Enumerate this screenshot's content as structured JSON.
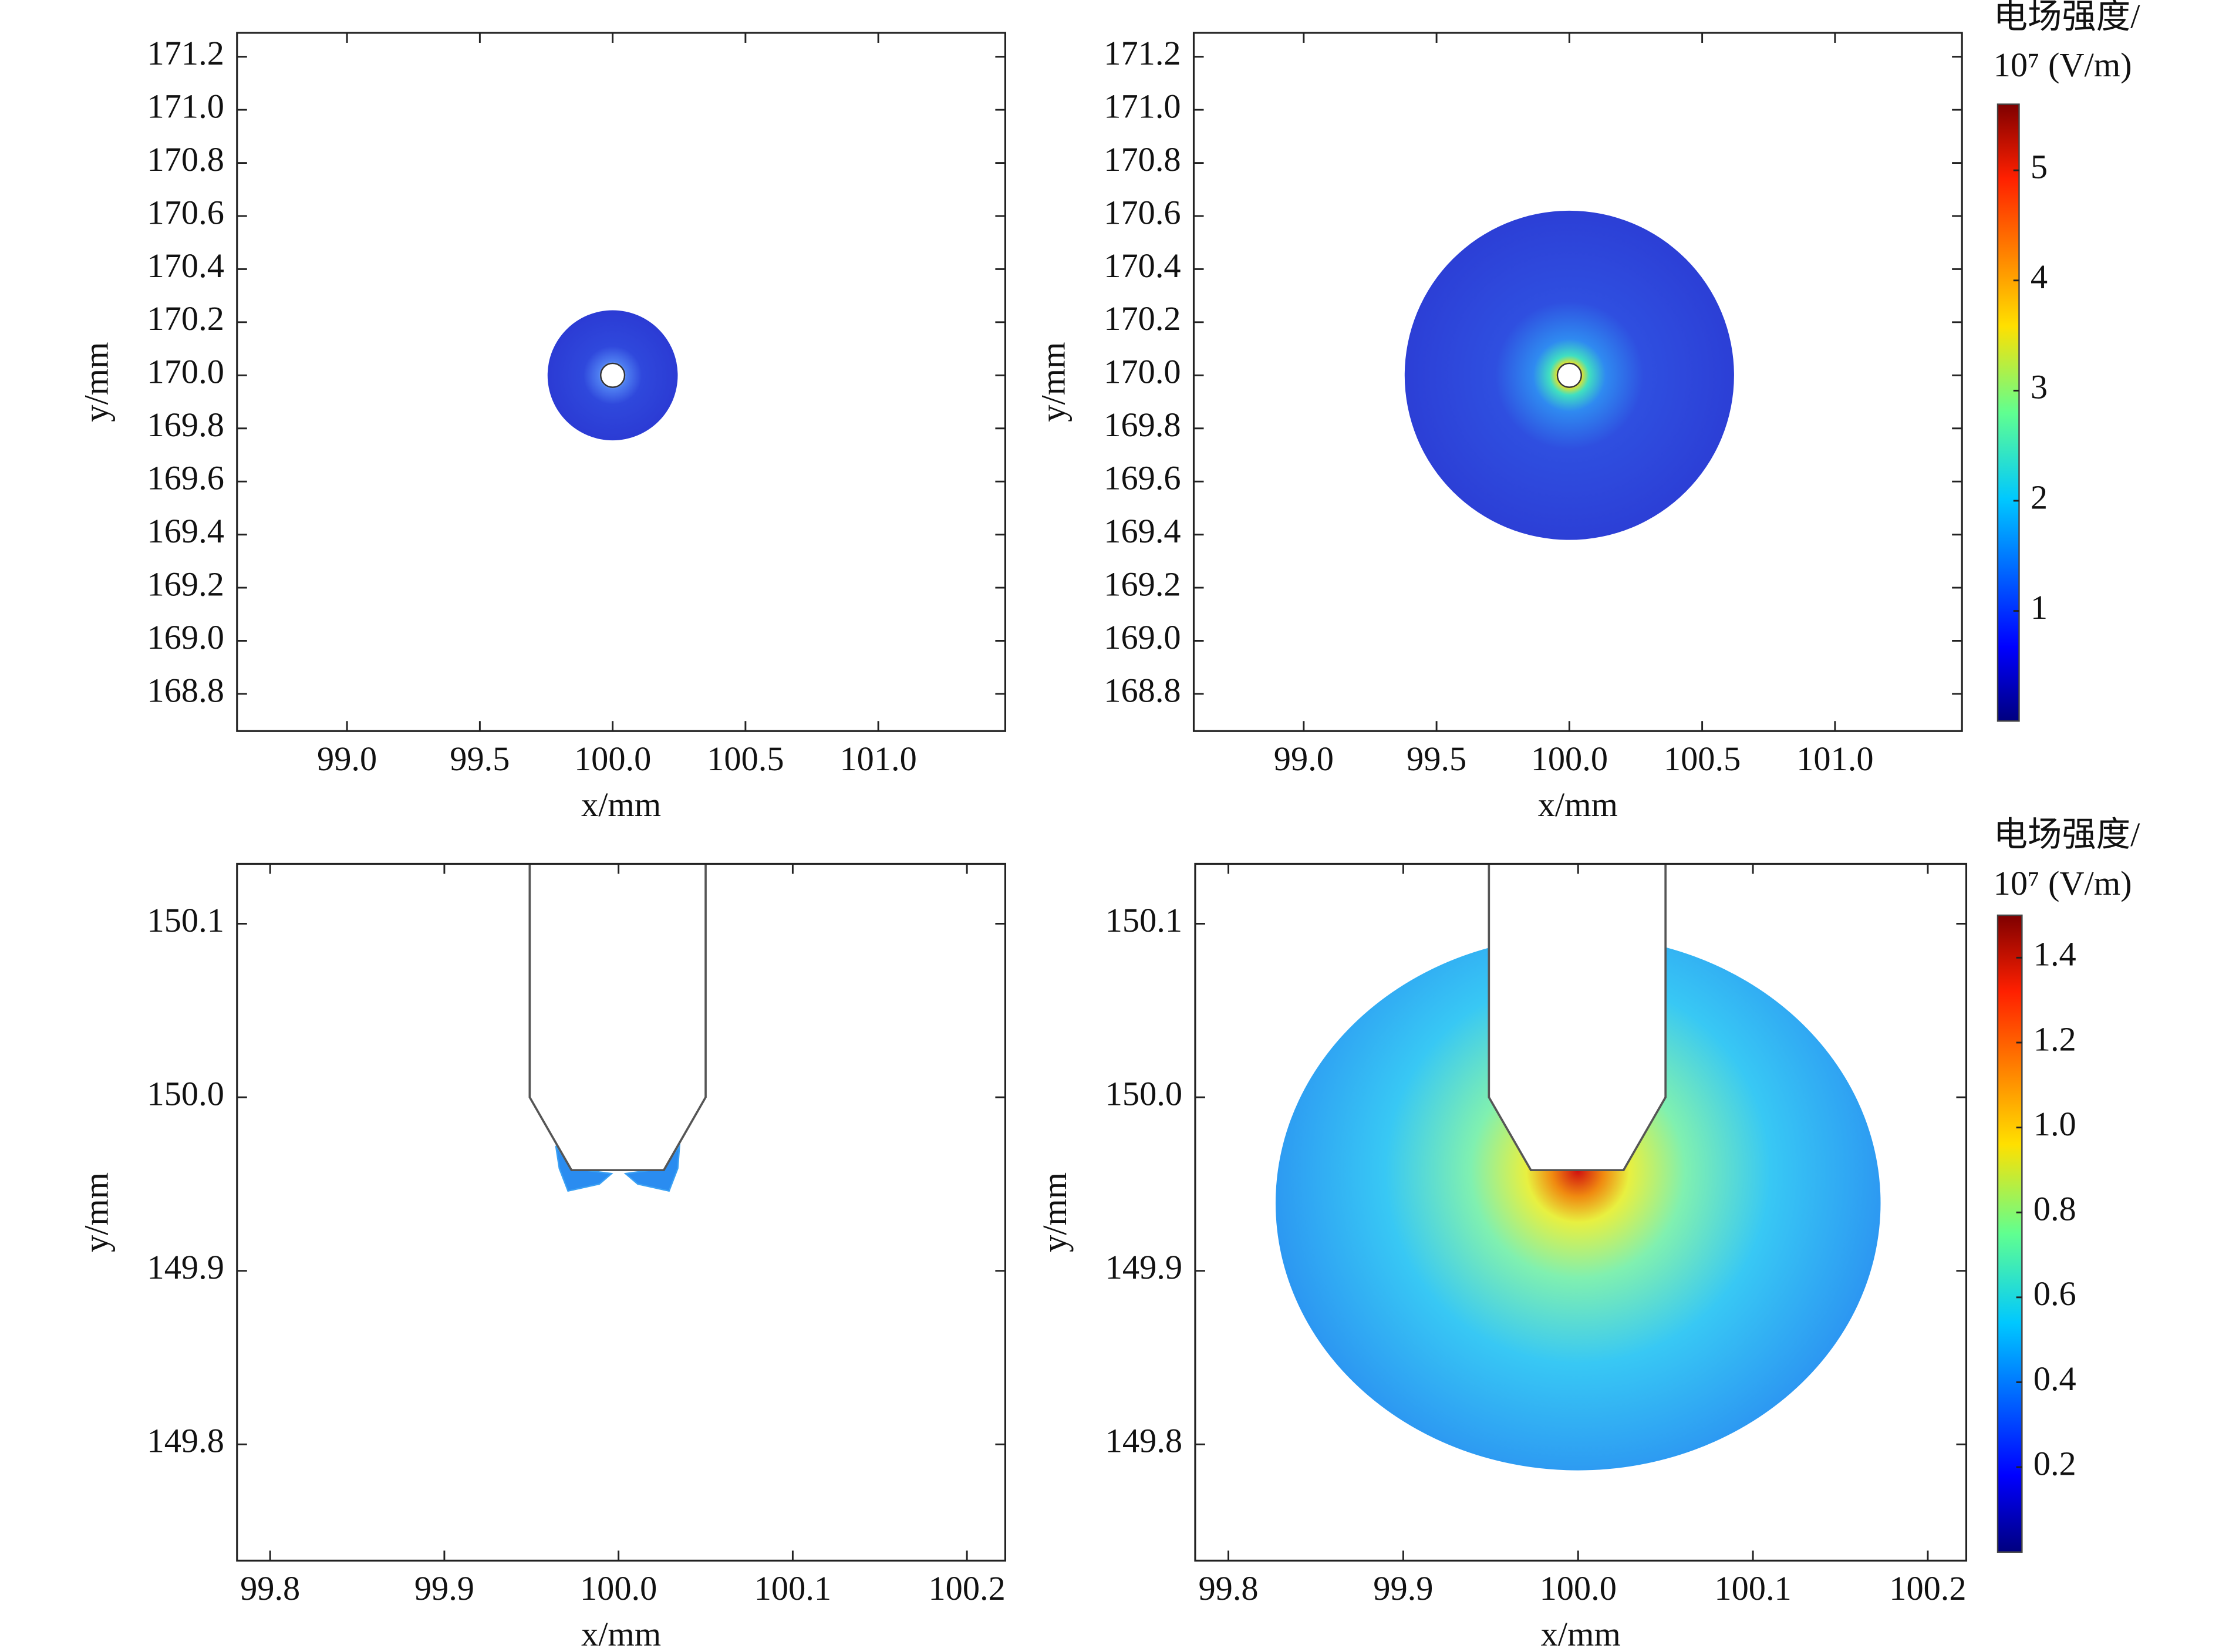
{
  "chart_data": [
    {
      "type": "field",
      "xlabel": "x/mm",
      "ylabel": "y/mm",
      "xlim": [
        98.586,
        101.478
      ],
      "ylim": [
        168.66,
        171.29
      ],
      "xticks": [
        {
          "value": 99,
          "label": "99.0"
        },
        99.5,
        {
          "value": 100,
          "label": "100.0"
        },
        100.5,
        {
          "value": 101,
          "label": "101.0"
        }
      ],
      "yticks": [
        171.2,
        {
          "value": 171,
          "label": "171.0"
        },
        170.8,
        170.6,
        170.4,
        170.2,
        {
          "value": 170,
          "label": "170.0"
        },
        169.8,
        169.6,
        169.4,
        169.2,
        {
          "value": 169,
          "label": "169.0"
        },
        168.8
      ],
      "region": {
        "cx": 100,
        "cy": 170,
        "r": 0.245,
        "hole": 0.045
      }
    },
    {
      "type": "field",
      "xlabel": "x/mm",
      "ylabel": "y/mm",
      "xlim": [
        98.586,
        101.478
      ],
      "ylim": [
        168.66,
        171.29
      ],
      "xticks": [
        {
          "value": 99,
          "label": "99.0"
        },
        99.5,
        {
          "value": 100,
          "label": "100.0"
        },
        100.5,
        {
          "value": 101,
          "label": "101.0"
        }
      ],
      "yticks": [
        171.2,
        {
          "value": 171,
          "label": "171.0"
        },
        170.8,
        170.6,
        170.4,
        170.2,
        {
          "value": 170,
          "label": "170.0"
        },
        169.8,
        169.6,
        169.4,
        169.2,
        {
          "value": 169,
          "label": "169.0"
        },
        168.8
      ],
      "region": {
        "cx": 100,
        "cy": 170,
        "r": 0.62,
        "hole": 0.045
      },
      "colorbar": {
        "label": [
          "电场强度/",
          "10⁷ (V/m)"
        ],
        "lim": [
          0,
          5.6
        ],
        "ticks": [
          1,
          2,
          3,
          4,
          5
        ]
      }
    },
    {
      "type": "field",
      "xlabel": "x/mm",
      "ylabel": "y/mm",
      "xlim": [
        99.781,
        100.222
      ],
      "ylim": [
        149.733,
        150.1345
      ],
      "xticks": [
        99.8,
        99.9,
        {
          "value": 100,
          "label": "100.0"
        },
        100.1,
        100.2
      ],
      "yticks": [
        150.1,
        {
          "value": 150,
          "label": "150.0"
        },
        149.9,
        149.8
      ],
      "outline_x": [
        99.949,
        99.949,
        99.973,
        100.026,
        100.05,
        100.05
      ],
      "outline_y": [
        150.1345,
        150.0,
        149.958,
        149.958,
        150.0,
        150.1345
      ],
      "patches": [
        {
          "x": [
            99.964,
            99.973,
            99.996,
            99.989,
            99.971,
            99.966
          ],
          "y": [
            149.972,
            149.959,
            149.956,
            149.95,
            149.946,
            149.959
          ]
        },
        {
          "x": [
            100.035,
            100.026,
            100.004,
            100.011,
            100.029,
            100.034
          ],
          "y": [
            149.972,
            149.959,
            149.956,
            149.95,
            149.946,
            149.959
          ]
        }
      ]
    },
    {
      "type": "field",
      "xlabel": "x/mm",
      "ylabel": "y/mm",
      "xlim": [
        99.781,
        100.222
      ],
      "ylim": [
        149.733,
        150.1345
      ],
      "xticks": [
        99.8,
        99.9,
        {
          "value": 100,
          "label": "100.0"
        },
        100.1,
        100.2
      ],
      "yticks": [
        150.1,
        {
          "value": 150,
          "label": "150.0"
        },
        149.9,
        149.8
      ],
      "outline_x": [
        99.949,
        99.949,
        99.973,
        100.026,
        100.05,
        100.05
      ],
      "outline_y": [
        150.1345,
        150.0,
        149.958,
        149.958,
        150.0,
        150.1345
      ],
      "ellipse": {
        "cx": 100,
        "cy": 149.939,
        "rx": 0.173,
        "ry": 0.154
      },
      "colorbar": {
        "label": [
          "电场强度/",
          "10⁷ (V/m)"
        ],
        "lim": [
          0,
          1.5
        ],
        "ticks": [
          0.2,
          0.4,
          0.6,
          0.8,
          {
            "value": 1,
            "label": "1.0"
          },
          1.2,
          1.4
        ]
      }
    }
  ]
}
